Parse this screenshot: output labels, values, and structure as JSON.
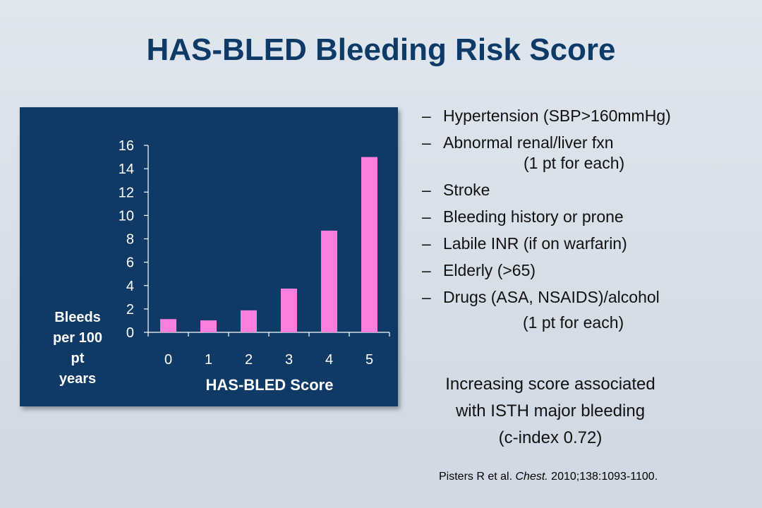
{
  "slide": {
    "title": "HAS-BLED Bleeding Risk Score",
    "bullets": [
      {
        "text": "Hypertension (SBP>160mmHg)"
      },
      {
        "text": "Abnormal renal/liver fxn",
        "sub": "(1 pt for each)"
      },
      {
        "text": "Stroke"
      },
      {
        "text": "Bleeding history or prone"
      },
      {
        "text": "Labile INR (if on warfarin)"
      },
      {
        "text": "Elderly (>65)"
      },
      {
        "text": "Drugs (ASA, NSAIDS)/alcohol"
      }
    ],
    "bullets_trailing": "(1 pt for each)",
    "dash": "–",
    "summary": [
      "Increasing score associated",
      "with ISTH major bleeding",
      "(c-index 0.72)"
    ],
    "citation": {
      "authors": "Pisters R et al. ",
      "journal": "Chest.",
      "details": " 2010;138:1093-1100."
    }
  },
  "colors": {
    "title": "#0d3a66",
    "panel": "#0f3a66",
    "bar": "#ff80dc",
    "axis": "#ffffff"
  },
  "chart_data": {
    "type": "bar",
    "categories": [
      "0",
      "1",
      "2",
      "3",
      "4",
      "5"
    ],
    "values": [
      1.13,
      1.02,
      1.88,
      3.74,
      8.7,
      15.0
    ],
    "xlabel": "HAS-BLED Score",
    "ylabel": "Bleeds per 100 pt years",
    "ylabel_lines": [
      "Bleeds",
      "per 100",
      "pt",
      "years"
    ],
    "ylim": [
      0,
      16
    ],
    "yticks": [
      0,
      2,
      4,
      6,
      8,
      10,
      12,
      14,
      16
    ],
    "grid": false,
    "legend": "none"
  }
}
